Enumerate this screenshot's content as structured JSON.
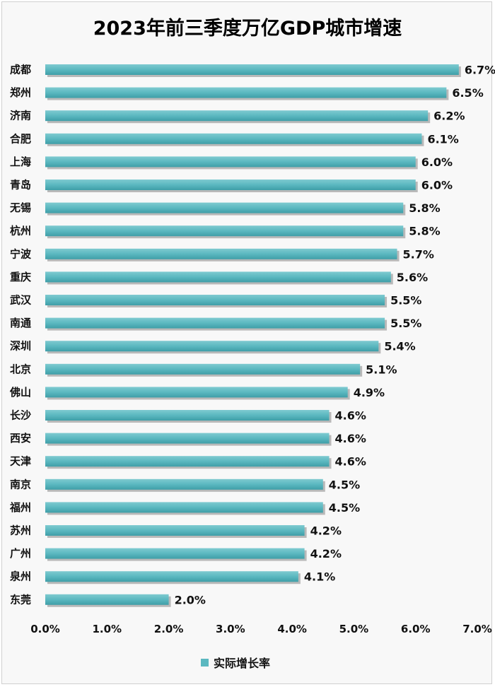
{
  "chart_data": {
    "type": "bar",
    "orientation": "horizontal",
    "title": "2023年前三季度万亿GDP城市增速",
    "categories": [
      "成都",
      "郑州",
      "济南",
      "合肥",
      "上海",
      "青岛",
      "无锡",
      "杭州",
      "宁波",
      "重庆",
      "武汉",
      "南通",
      "深圳",
      "北京",
      "佛山",
      "长沙",
      "西安",
      "天津",
      "南京",
      "福州",
      "苏州",
      "广州",
      "泉州",
      "东莞"
    ],
    "series": [
      {
        "name": "实际增长率",
        "values": [
          6.7,
          6.5,
          6.2,
          6.1,
          6.0,
          6.0,
          5.8,
          5.8,
          5.7,
          5.6,
          5.5,
          5.5,
          5.4,
          5.1,
          4.9,
          4.6,
          4.6,
          4.6,
          4.5,
          4.5,
          4.2,
          4.2,
          4.1,
          2.0
        ],
        "labels": [
          "6.7%",
          "6.5%",
          "6.2%",
          "6.1%",
          "6.0%",
          "6.0%",
          "5.8%",
          "5.8%",
          "5.7%",
          "5.6%",
          "5.5%",
          "5.5%",
          "5.4%",
          "5.1%",
          "4.9%",
          "4.6%",
          "4.6%",
          "4.6%",
          "4.5%",
          "4.5%",
          "4.2%",
          "4.2%",
          "4.1%",
          "2.0%"
        ],
        "color": "#5bb8c0"
      }
    ],
    "xlim": [
      0,
      7
    ],
    "xticks": [
      0,
      1,
      2,
      3,
      4,
      5,
      6,
      7
    ],
    "xtick_labels": [
      "0.0%",
      "1.0%",
      "2.0%",
      "3.0%",
      "4.0%",
      "5.0%",
      "6.0%",
      "7.0%"
    ],
    "grid": false,
    "legend_position": "bottom-center"
  }
}
